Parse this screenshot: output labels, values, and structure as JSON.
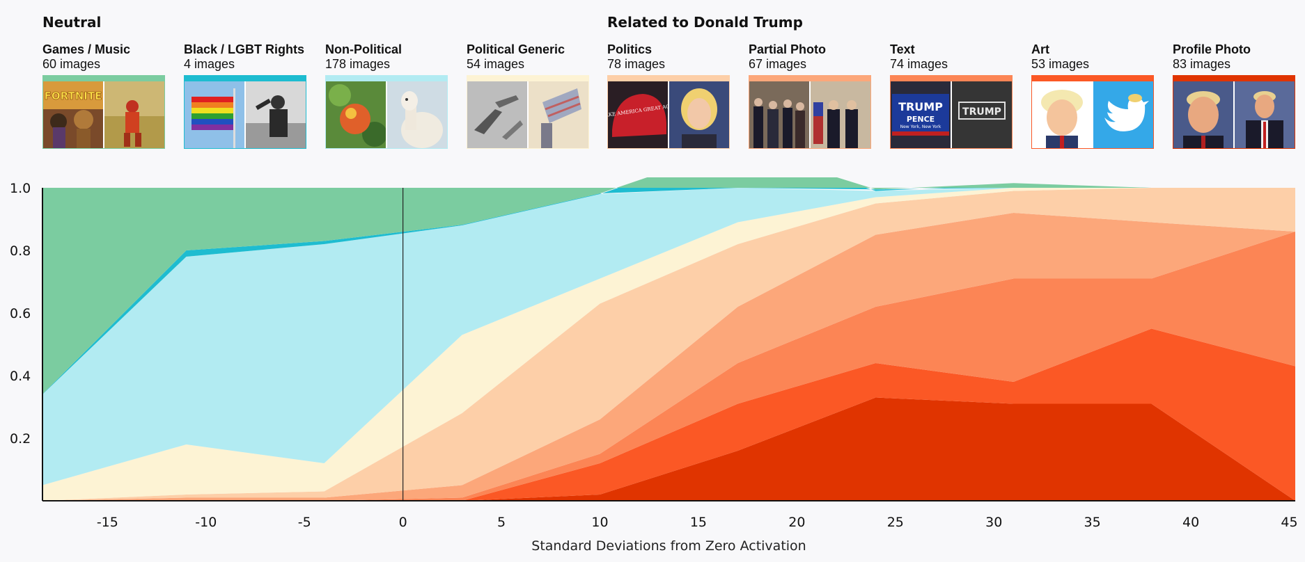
{
  "groups": {
    "neutral": "Neutral",
    "trump": "Related to Donald Trump"
  },
  "categories": [
    {
      "name": "Games / Music",
      "count": "60 images",
      "color": "#7bcca0"
    },
    {
      "name": "Black / LGBT Rights",
      "count": "4 images",
      "color": "#1ebcd0"
    },
    {
      "name": "Non-Political",
      "count": "178 images",
      "color": "#b2ebf2"
    },
    {
      "name": "Political Generic",
      "count": "54 images",
      "color": "#fdf3d4"
    },
    {
      "name": "Politics",
      "count": "78 images",
      "color": "#fdcfa8"
    },
    {
      "name": "Partial Photo",
      "count": "67 images",
      "color": "#fca77a"
    },
    {
      "name": "Text",
      "count": "74 images",
      "color": "#fc8555"
    },
    {
      "name": "Art",
      "count": "53 images",
      "color": "#fb5825"
    },
    {
      "name": "Profile Photo",
      "count": "83 images",
      "color": "#e03400"
    }
  ],
  "thumb_text": {
    "fortnite": "FORTNITE",
    "maga": "MAKE AMERICA GREAT AGAIN",
    "trump": "TRUMP",
    "pence": "PENCE",
    "newyork": "New York, New York"
  },
  "chart_data": {
    "type": "area",
    "stacked": true,
    "normalized": true,
    "xlabel": "Standard Deviations from Zero Activation",
    "ylabel": "",
    "xlim": [
      -18.3,
      45.3
    ],
    "ylim": [
      0,
      1
    ],
    "x_ticks": [
      -15,
      -10,
      -5,
      0,
      5,
      10,
      15,
      20,
      25,
      30,
      35,
      40,
      45
    ],
    "x_tick_labels": [
      "-15",
      "-10",
      "-5",
      "0",
      "5",
      "10",
      "15",
      "20",
      "25",
      "30",
      "35",
      "40",
      "45"
    ],
    "y_ticks": [
      0.2,
      0.4,
      0.6,
      0.8,
      1.0
    ],
    "y_tick_labels": [
      "0.2",
      "0.4",
      "0.6",
      "0.8",
      "1.0"
    ],
    "reference_line_x": 0,
    "x": [
      -18.3,
      -11,
      -4,
      3,
      10,
      17,
      24,
      31,
      38,
      45.3
    ],
    "series": [
      {
        "name": "Profile Photo",
        "values": [
          0,
          0,
          0,
          0,
          0.02,
          0.16,
          0.33,
          0.31,
          0.31,
          0
        ]
      },
      {
        "name": "Art",
        "values": [
          0,
          0,
          0,
          0,
          0.1,
          0.15,
          0.11,
          0.07,
          0.24,
          0.43
        ]
      },
      {
        "name": "Text",
        "values": [
          0,
          0,
          0,
          0.01,
          0.03,
          0.13,
          0.18,
          0.33,
          0.16,
          0.43
        ]
      },
      {
        "name": "Partial Photo",
        "values": [
          0,
          0.01,
          0.01,
          0.04,
          0.11,
          0.18,
          0.23,
          0.21,
          0.18,
          0
        ]
      },
      {
        "name": "Politics",
        "values": [
          0,
          0.01,
          0.02,
          0.23,
          0.37,
          0.2,
          0.1,
          0.07,
          0.11,
          0.14
        ]
      },
      {
        "name": "Political Generic",
        "values": [
          0.05,
          0.16,
          0.09,
          0.25,
          0.08,
          0.07,
          0.02,
          0.01,
          0,
          0
        ]
      },
      {
        "name": "Non-Political",
        "values": [
          0.29,
          0.6,
          0.7,
          0.35,
          0.27,
          0.24,
          0.02,
          0.01,
          0,
          0
        ]
      },
      {
        "name": "Black / LGBT Rights",
        "values": [
          0.001,
          0.02,
          0.01,
          0.002,
          0.002,
          0.002,
          0.005,
          0.005,
          0,
          0
        ]
      },
      {
        "name": "Games / Music",
        "values": [
          0.659,
          0.2,
          0.17,
          0.118,
          0.018,
          0.008,
          0.005,
          0.005,
          0,
          0
        ]
      }
    ]
  }
}
